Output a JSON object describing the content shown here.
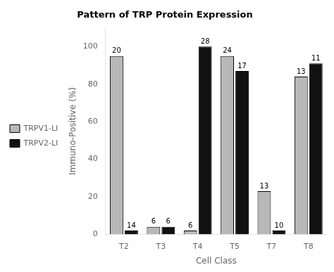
{
  "chart_data": {
    "type": "bar",
    "title": "Pattern of TRP Protein Expression",
    "xlabel": "Cell Class",
    "ylabel": "Immuno-Positive (%)",
    "categories": [
      "T2",
      "T3",
      "T4",
      "T5",
      "T7",
      "T8"
    ],
    "series": [
      {
        "name": "TRPV1-LI",
        "color": "#b8b8b8",
        "values": [
          95,
          4,
          2,
          95,
          23,
          84
        ],
        "n": [
          20,
          6,
          6,
          24,
          13,
          13
        ]
      },
      {
        "name": "TRPV2-LI",
        "color": "#111111",
        "values": [
          2,
          4,
          100,
          87,
          2,
          91
        ],
        "n": [
          14,
          6,
          28,
          17,
          10,
          11
        ]
      }
    ],
    "ylim": [
      0,
      110
    ],
    "yticks": [
      0,
      20,
      40,
      60,
      80,
      100
    ],
    "grid": false,
    "legend": "center left"
  }
}
